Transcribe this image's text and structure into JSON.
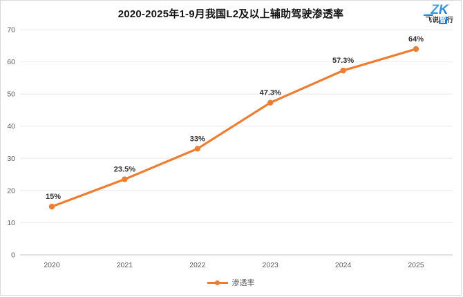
{
  "logo": {
    "monogram": "ZK",
    "name_parts": {
      "pre": "飞说",
      "mid": "智",
      "post": "行"
    },
    "accent": "#1a80d8"
  },
  "chart_data": {
    "type": "line",
    "title": "2020-2025年1-9月我国L2及以上辅助驾驶渗透率",
    "x": [
      "2020",
      "2021",
      "2022",
      "2023",
      "2024",
      "2025"
    ],
    "series": [
      {
        "name": "渗透率",
        "values": [
          15,
          23.5,
          33,
          47.3,
          57.3,
          64
        ],
        "labels": [
          "15%",
          "23.5%",
          "33%",
          "47.3%",
          "57.3%",
          "64%"
        ],
        "color": "#ED7D31"
      }
    ],
    "xlabel": "",
    "ylabel": "",
    "ylim": [
      0,
      70
    ],
    "yticks": [
      0,
      10,
      20,
      30,
      40,
      50,
      60,
      70
    ],
    "grid": true,
    "legend_position": "bottom",
    "colors": {
      "gridline": "#e8e8e8",
      "axis_line": "#c6c6c6",
      "tick_label": "#595959",
      "data_label": "#333333"
    }
  }
}
